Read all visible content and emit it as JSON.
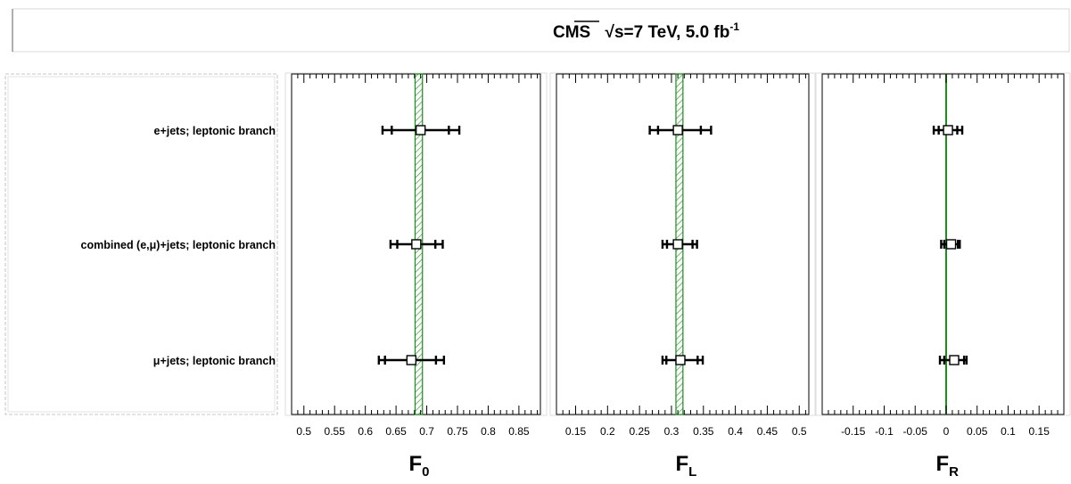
{
  "header": {
    "experiment": "CMS",
    "sqrt_s": "s",
    "energy": "=7 TeV, 5.0 fb",
    "lumi_exponent": "-1"
  },
  "colors": {
    "band_stroke": "#1a8c1a",
    "band_hatch": "#2e9e2e",
    "sm_line": "#1a8c1a",
    "marker": "#000000"
  },
  "row_labels": [
    "e+jets; leptonic branch",
    "combined (e,μ)+jets; leptonic branch",
    "μ+jets; leptonic branch"
  ],
  "chart_data": [
    {
      "type": "scatter",
      "variable": "F",
      "subscript": "0",
      "xlim": [
        0.48,
        0.885
      ],
      "ticks": [
        "0.5",
        "0.55",
        "0.6",
        "0.65",
        "0.7",
        "0.75",
        "0.8",
        "0.85"
      ],
      "band": [
        0.681,
        0.693
      ],
      "points": [
        {
          "label": "e+jets; leptonic branch",
          "value": 0.69,
          "stat": [
            0.643,
            0.736
          ],
          "total": [
            0.628,
            0.753
          ]
        },
        {
          "label": "combined (e,μ)+jets; leptonic branch",
          "value": 0.683,
          "stat": [
            0.652,
            0.714
          ],
          "total": [
            0.641,
            0.726
          ]
        },
        {
          "label": "μ+jets; leptonic branch",
          "value": 0.675,
          "stat": [
            0.632,
            0.715
          ],
          "total": [
            0.622,
            0.728
          ]
        }
      ]
    },
    {
      "type": "scatter",
      "variable": "F",
      "subscript": "L",
      "xlim": [
        0.12,
        0.515
      ],
      "ticks": [
        "0.15",
        "0.2",
        "0.25",
        "0.3",
        "0.35",
        "0.4",
        "0.45",
        "0.5"
      ],
      "band": [
        0.307,
        0.318
      ],
      "points": [
        {
          "label": "e+jets; leptonic branch",
          "value": 0.31,
          "stat": [
            0.279,
            0.346
          ],
          "total": [
            0.266,
            0.362
          ]
        },
        {
          "label": "combined (e,μ)+jets; leptonic branch",
          "value": 0.31,
          "stat": [
            0.293,
            0.333
          ],
          "total": [
            0.286,
            0.34
          ]
        },
        {
          "label": "μ+jets; leptonic branch",
          "value": 0.314,
          "stat": [
            0.292,
            0.341
          ],
          "total": [
            0.286,
            0.349
          ]
        }
      ]
    },
    {
      "type": "scatter",
      "variable": "F",
      "subscript": "R",
      "xlim": [
        -0.2,
        0.19
      ],
      "ticks": [
        "-0.15",
        "-0.1",
        "-0.05",
        "0",
        "0.05",
        "0.1",
        "0.15"
      ],
      "sm_line": 0.0,
      "points": [
        {
          "label": "e+jets; leptonic branch",
          "value": 0.003,
          "stat": [
            -0.012,
            0.018
          ],
          "total": [
            -0.02,
            0.026
          ]
        },
        {
          "label": "combined (e,μ)+jets; leptonic branch",
          "value": 0.008,
          "stat": [
            -0.003,
            0.019
          ],
          "total": [
            -0.008,
            0.022
          ]
        },
        {
          "label": "μ+jets; leptonic branch",
          "value": 0.013,
          "stat": [
            -0.003,
            0.029
          ],
          "total": [
            -0.01,
            0.033
          ]
        }
      ]
    }
  ]
}
